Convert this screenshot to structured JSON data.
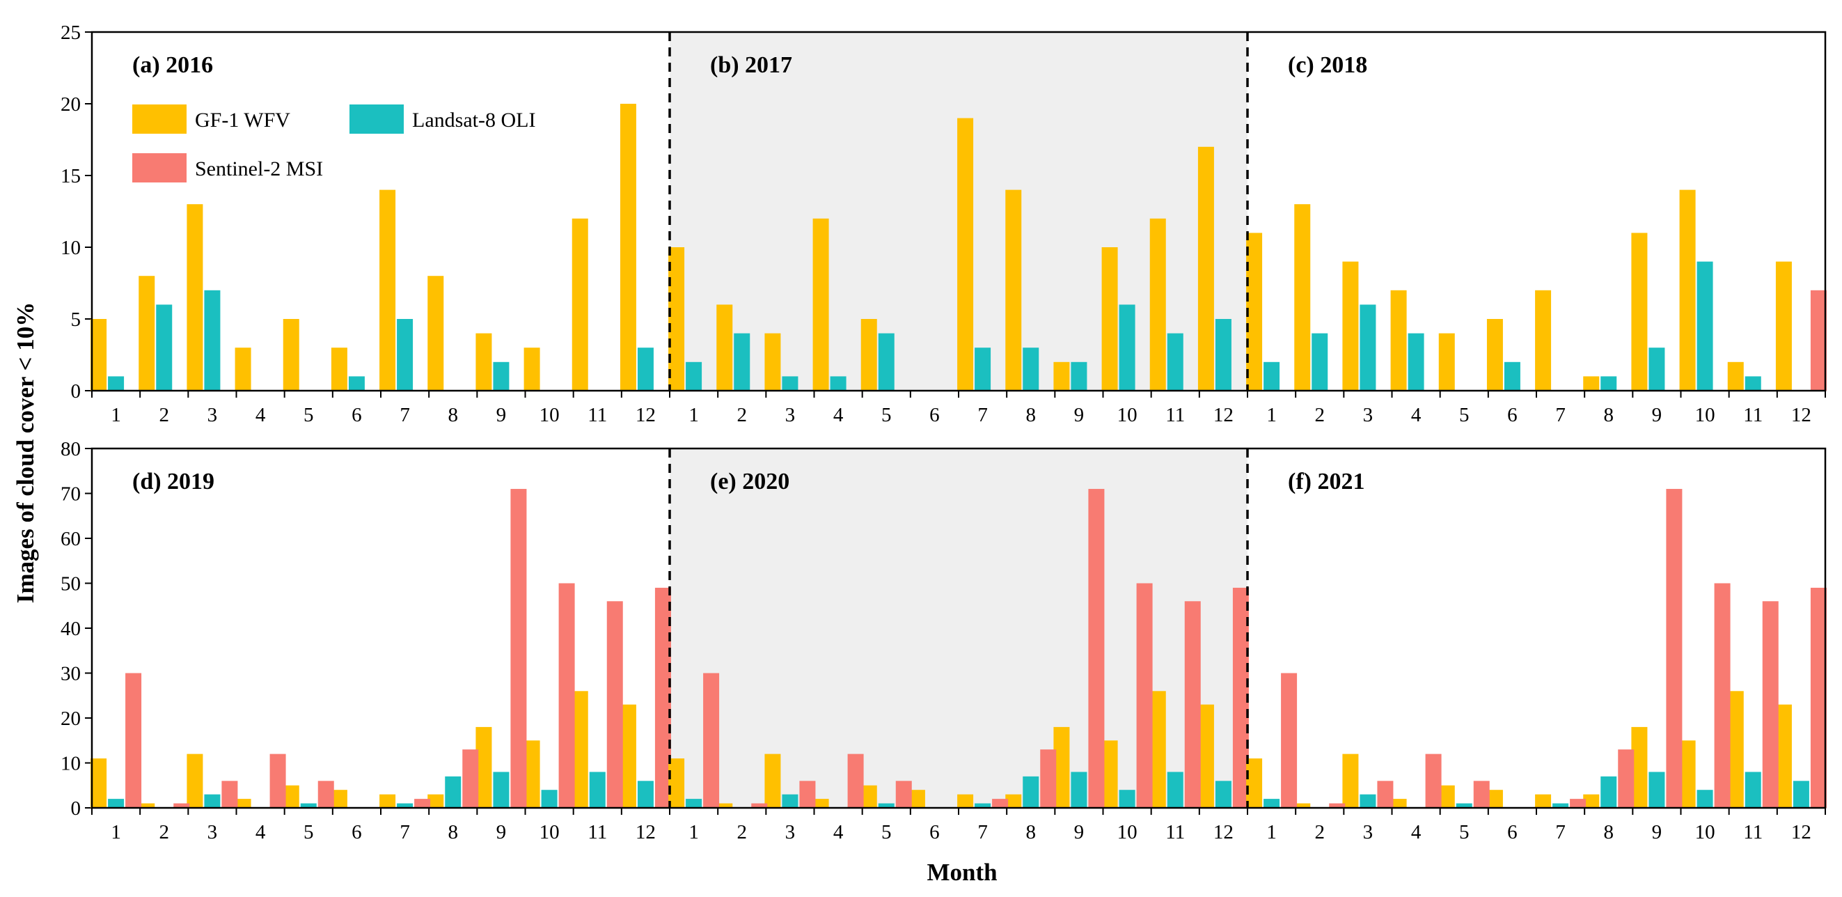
{
  "chart_data": {
    "type": "bar",
    "ylabel": "Images of cloud cover < 10%",
    "xlabel": "Month",
    "colors": {
      "GF-1 WFV": "#FFC000",
      "Landsat-8 OLI": "#1BBFC0",
      "Sentinel-2 MSI": "#F87B72",
      "shaded_panel": "#EFEFEF"
    },
    "legend": {
      "placement": "top-left",
      "entries": [
        "GF-1 WFV",
        "Landsat-8 OLI",
        "Sentinel-2 MSI"
      ]
    },
    "categories": [
      "1",
      "2",
      "3",
      "4",
      "5",
      "6",
      "7",
      "8",
      "9",
      "10",
      "11",
      "12"
    ],
    "rows": [
      {
        "ylim": [
          0,
          25
        ],
        "yticks": [
          "0",
          "5",
          "10",
          "15",
          "20",
          "25"
        ],
        "panels": [
          {
            "title": "(a) 2016",
            "shaded": false,
            "series": [
              {
                "name": "GF-1 WFV",
                "values": [
                  5,
                  8,
                  13,
                  3,
                  5,
                  3,
                  14,
                  8,
                  4,
                  3,
                  12,
                  20
                ]
              },
              {
                "name": "Landsat-8 OLI",
                "values": [
                  1,
                  6,
                  7,
                  0,
                  0,
                  1,
                  5,
                  0,
                  2,
                  0,
                  0,
                  3
                ]
              },
              {
                "name": "Sentinel-2 MSI",
                "values": [
                  0,
                  0,
                  0,
                  0,
                  0,
                  0,
                  0,
                  0,
                  0,
                  0,
                  0,
                  0
                ]
              }
            ]
          },
          {
            "title": "(b) 2017",
            "shaded": true,
            "series": [
              {
                "name": "GF-1 WFV",
                "values": [
                  10,
                  6,
                  4,
                  12,
                  5,
                  0,
                  19,
                  14,
                  2,
                  10,
                  12,
                  17
                ]
              },
              {
                "name": "Landsat-8 OLI",
                "values": [
                  2,
                  4,
                  1,
                  1,
                  4,
                  0,
                  3,
                  3,
                  2,
                  6,
                  4,
                  5
                ]
              },
              {
                "name": "Sentinel-2 MSI",
                "values": [
                  0,
                  0,
                  0,
                  0,
                  0,
                  0,
                  0,
                  0,
                  0,
                  0,
                  0,
                  0
                ]
              }
            ]
          },
          {
            "title": "(c) 2018",
            "shaded": false,
            "series": [
              {
                "name": "GF-1 WFV",
                "values": [
                  11,
                  13,
                  9,
                  7,
                  4,
                  5,
                  7,
                  1,
                  11,
                  14,
                  2,
                  9
                ]
              },
              {
                "name": "Landsat-8 OLI",
                "values": [
                  2,
                  4,
                  6,
                  4,
                  0,
                  2,
                  0,
                  1,
                  3,
                  9,
                  1,
                  0
                ]
              },
              {
                "name": "Sentinel-2 MSI",
                "values": [
                  0,
                  0,
                  0,
                  0,
                  0,
                  0,
                  0,
                  0,
                  0,
                  0,
                  0,
                  7
                ]
              }
            ]
          }
        ]
      },
      {
        "ylim": [
          0,
          80
        ],
        "yticks": [
          "0",
          "10",
          "20",
          "30",
          "40",
          "50",
          "60",
          "70",
          "80"
        ],
        "panels": [
          {
            "title": "(d) 2019",
            "shaded": false,
            "series": [
              {
                "name": "GF-1 WFV",
                "values": [
                  11,
                  1,
                  12,
                  2,
                  5,
                  4,
                  3,
                  3,
                  18,
                  15,
                  26,
                  23
                ]
              },
              {
                "name": "Landsat-8 OLI",
                "values": [
                  2,
                  0,
                  3,
                  0,
                  1,
                  0,
                  1,
                  7,
                  8,
                  4,
                  8,
                  6
                ]
              },
              {
                "name": "Sentinel-2 MSI",
                "values": [
                  30,
                  1,
                  6,
                  12,
                  6,
                  0,
                  2,
                  13,
                  71,
                  50,
                  46,
                  49
                ]
              }
            ]
          },
          {
            "title": "(e) 2020",
            "shaded": true,
            "series": [
              {
                "name": "GF-1 WFV",
                "values": [
                  11,
                  1,
                  12,
                  2,
                  5,
                  4,
                  3,
                  3,
                  18,
                  15,
                  26,
                  23
                ]
              },
              {
                "name": "Landsat-8 OLI",
                "values": [
                  2,
                  0,
                  3,
                  0,
                  1,
                  0,
                  1,
                  7,
                  8,
                  4,
                  8,
                  6
                ]
              },
              {
                "name": "Sentinel-2 MSI",
                "values": [
                  30,
                  1,
                  6,
                  12,
                  6,
                  0,
                  2,
                  13,
                  71,
                  50,
                  46,
                  49
                ]
              }
            ]
          },
          {
            "title": "(f) 2021",
            "shaded": false,
            "series": [
              {
                "name": "GF-1 WFV",
                "values": [
                  11,
                  1,
                  12,
                  2,
                  5,
                  4,
                  3,
                  3,
                  18,
                  15,
                  26,
                  23
                ]
              },
              {
                "name": "Landsat-8 OLI",
                "values": [
                  2,
                  0,
                  3,
                  0,
                  1,
                  0,
                  1,
                  7,
                  8,
                  4,
                  8,
                  6
                ]
              },
              {
                "name": "Sentinel-2 MSI",
                "values": [
                  30,
                  1,
                  6,
                  12,
                  6,
                  0,
                  2,
                  13,
                  71,
                  50,
                  46,
                  49
                ]
              }
            ]
          }
        ]
      }
    ]
  }
}
